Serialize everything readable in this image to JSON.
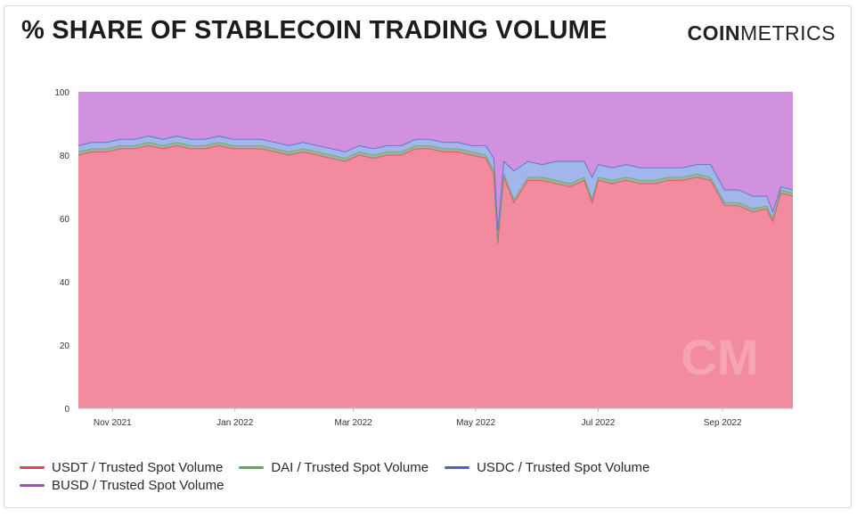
{
  "header": {
    "title": "% SHARE OF STABLECOIN TRADING VOLUME",
    "brand_bold": "COIN",
    "brand_regular": "METRICS"
  },
  "watermark": "CM",
  "colors": {
    "usdt": "#f28b9e",
    "usdt_line": "#d9455f",
    "dai": "#9bb59a",
    "dai_line": "#5aa868",
    "usdc": "#a3b6ec",
    "usdc_line": "#4466c4",
    "busd": "#d191de",
    "busd_line": "#a44fbe"
  },
  "chart_data": {
    "type": "area",
    "stacked": true,
    "xlabel": "",
    "ylabel": "",
    "ylim": [
      0,
      100
    ],
    "yticks": [
      0,
      20,
      40,
      60,
      80,
      100
    ],
    "xlim": [
      "2021-10-15",
      "2022-10-06"
    ],
    "xticks": [
      "2021-11-01",
      "2022-01-01",
      "2022-03-01",
      "2022-05-01",
      "2022-07-01",
      "2022-09-01"
    ],
    "xtick_labels": [
      "Nov 2021",
      "Jan 2022",
      "Mar 2022",
      "May 2022",
      "Jul 2022",
      "Sep 2022"
    ],
    "grid": false,
    "legend_position": "bottom-left",
    "x": [
      "2021-10-15",
      "2021-10-22",
      "2021-10-29",
      "2021-11-05",
      "2021-11-12",
      "2021-11-19",
      "2021-11-26",
      "2021-12-03",
      "2021-12-10",
      "2021-12-17",
      "2021-12-24",
      "2021-12-31",
      "2022-01-07",
      "2022-01-14",
      "2022-01-21",
      "2022-01-28",
      "2022-02-04",
      "2022-02-11",
      "2022-02-18",
      "2022-02-25",
      "2022-03-04",
      "2022-03-11",
      "2022-03-18",
      "2022-03-25",
      "2022-04-01",
      "2022-04-08",
      "2022-04-15",
      "2022-04-22",
      "2022-04-29",
      "2022-05-06",
      "2022-05-10",
      "2022-05-12",
      "2022-05-15",
      "2022-05-20",
      "2022-05-27",
      "2022-06-03",
      "2022-06-10",
      "2022-06-17",
      "2022-06-24",
      "2022-06-28",
      "2022-07-01",
      "2022-07-08",
      "2022-07-15",
      "2022-07-22",
      "2022-07-29",
      "2022-08-05",
      "2022-08-12",
      "2022-08-19",
      "2022-08-26",
      "2022-09-02",
      "2022-09-09",
      "2022-09-16",
      "2022-09-23",
      "2022-09-26",
      "2022-09-30",
      "2022-10-06"
    ],
    "series": [
      {
        "name": "USDT / Trusted Spot Volume",
        "values": [
          80,
          81,
          81,
          82,
          82,
          83,
          82,
          83,
          82,
          82,
          83,
          82,
          82,
          82,
          81,
          80,
          81,
          80,
          79,
          78,
          80,
          79,
          80,
          80,
          82,
          82,
          81,
          81,
          80,
          79,
          74,
          52,
          73,
          65,
          72,
          72,
          71,
          70,
          72,
          65,
          72,
          71,
          72,
          71,
          71,
          72,
          72,
          73,
          72,
          64,
          64,
          62,
          63,
          59,
          68,
          67
        ]
      },
      {
        "name": "DAI / Trusted Spot Volume",
        "values": [
          1,
          1,
          1,
          1,
          1,
          1,
          1,
          1,
          1,
          1,
          1,
          1,
          1,
          1,
          1,
          1,
          1,
          1,
          1,
          1,
          1,
          1,
          1,
          1,
          1,
          1,
          1,
          1,
          1,
          1,
          1,
          1,
          1,
          1,
          1,
          1,
          1,
          1,
          1,
          1,
          1,
          1,
          1,
          1,
          1,
          1,
          1,
          1,
          1,
          1,
          1,
          1,
          1,
          1,
          1,
          1
        ]
      },
      {
        "name": "USDC / Trusted Spot Volume",
        "values": [
          2,
          2,
          2,
          2,
          2,
          2,
          2,
          2,
          2,
          2,
          2,
          2,
          2,
          2,
          2,
          2,
          2,
          2,
          2,
          2,
          2,
          2,
          2,
          2,
          2,
          2,
          2,
          2,
          2,
          3,
          4,
          3,
          4,
          9,
          5,
          4,
          6,
          7,
          5,
          7,
          4,
          4,
          4,
          4,
          4,
          3,
          3,
          3,
          4,
          4,
          4,
          4,
          3,
          2,
          1,
          1
        ]
      },
      {
        "name": "BUSD / Trusted Spot Volume",
        "values": [
          17,
          16,
          16,
          15,
          15,
          14,
          15,
          14,
          15,
          15,
          14,
          15,
          15,
          15,
          16,
          17,
          16,
          17,
          18,
          19,
          17,
          18,
          17,
          17,
          15,
          15,
          16,
          16,
          17,
          17,
          21,
          44,
          22,
          25,
          22,
          23,
          22,
          22,
          22,
          27,
          23,
          24,
          23,
          24,
          24,
          24,
          24,
          23,
          23,
          31,
          31,
          33,
          33,
          38,
          30,
          31
        ]
      }
    ]
  }
}
